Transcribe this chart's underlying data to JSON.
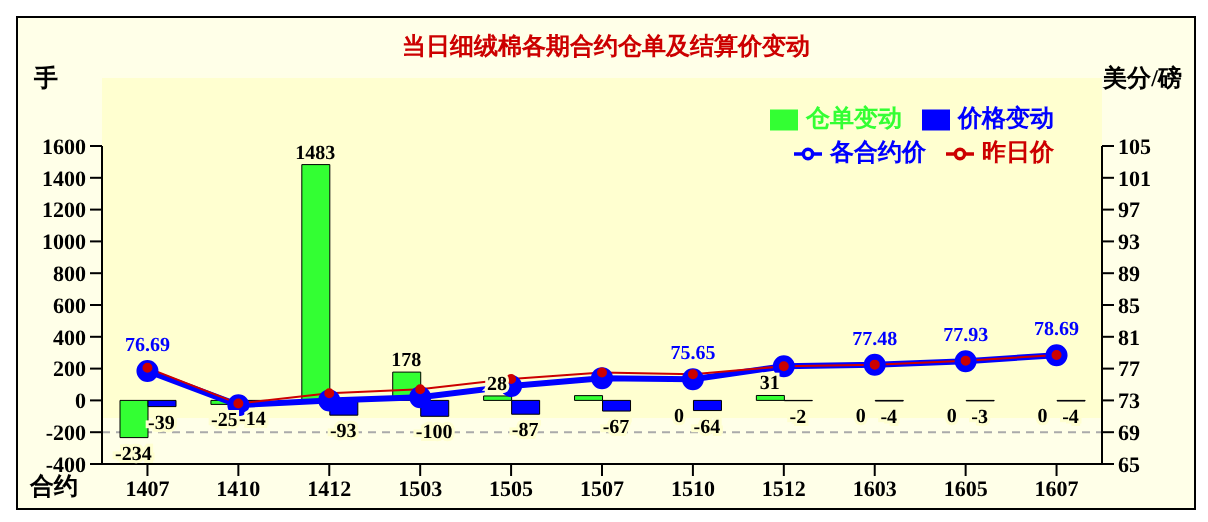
{
  "chart_data": {
    "type": "bar",
    "title": "当日细绒棉各期合约仓单及结算价变动",
    "ylabel": "手",
    "y2label": "美分/磅",
    "xlabel": "合约",
    "categories": [
      "1407",
      "1410",
      "1412",
      "1503",
      "1505",
      "1507",
      "1510",
      "1512",
      "1603",
      "1605",
      "1607"
    ],
    "series": [
      {
        "name": "仓单变动",
        "color": "#33ff33",
        "values": [
          -234,
          -25,
          1483,
          178,
          28,
          30,
          0,
          31,
          0,
          0,
          0
        ],
        "value_labels": [
          "-234",
          "-25",
          "1483",
          "178",
          "28",
          null,
          "0",
          "31",
          "0",
          "0",
          "0"
        ]
      },
      {
        "name": "价格变动",
        "color": "#0000ff",
        "values": [
          -39,
          -14,
          -93,
          -100,
          -87,
          -67,
          -64,
          -2,
          -4,
          -3,
          -4
        ],
        "value_labels": [
          "-39",
          "-14",
          "-93",
          "-100",
          "-87",
          "-67",
          "-64",
          "-2",
          "-4",
          "-3",
          "-4"
        ]
      },
      {
        "name": "各合约价",
        "type": "line",
        "axis": "y2",
        "color": "#0000ff",
        "marker": "circle",
        "values": [
          76.69,
          72.4,
          73.0,
          73.4,
          74.8,
          75.8,
          75.65,
          77.3,
          77.48,
          77.93,
          78.69
        ],
        "value_labels": [
          "76.69",
          null,
          null,
          null,
          null,
          null,
          "75.65",
          null,
          "77.48",
          "77.93",
          "78.69"
        ]
      },
      {
        "name": "昨日价",
        "type": "line",
        "axis": "y2",
        "color": "#cc0000",
        "marker": "circle",
        "values": [
          77.1,
          72.6,
          73.9,
          74.4,
          75.7,
          76.5,
          76.3,
          77.3,
          77.5,
          78.0,
          78.7
        ]
      }
    ],
    "ylim": [
      -400,
      1600
    ],
    "yticks": [
      -400,
      -200,
      0,
      200,
      400,
      600,
      800,
      1000,
      1200,
      1400,
      1600
    ],
    "y2lim": [
      65,
      105
    ],
    "y2ticks": [
      65,
      69,
      73,
      77,
      81,
      85,
      89,
      93,
      97,
      101,
      105
    ],
    "grid": "y",
    "legend": "top right"
  }
}
